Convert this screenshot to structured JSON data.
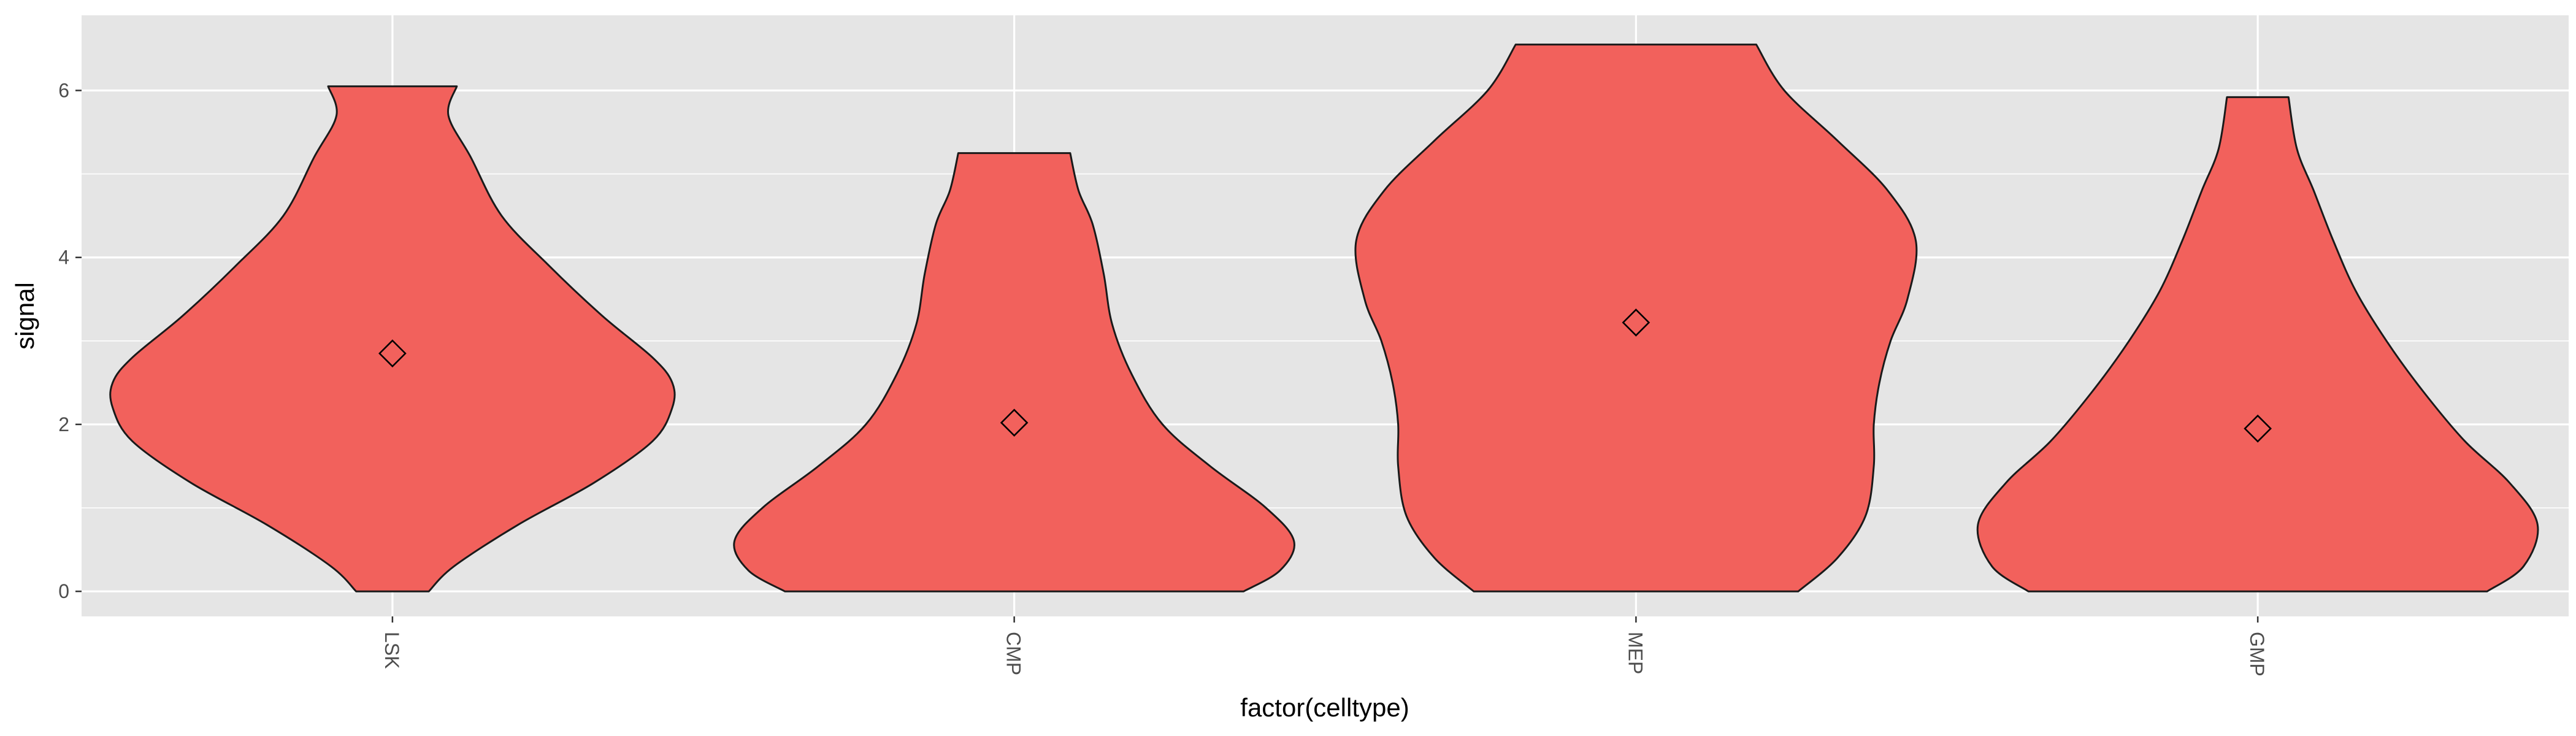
{
  "chart_data": {
    "type": "violin",
    "xlabel": "factor(celltype)",
    "ylabel": "signal",
    "ylim": [
      -0.3,
      6.9
    ],
    "y_ticks": [
      0,
      2,
      4,
      6
    ],
    "grid": true,
    "fill_color": "#F2615C",
    "panel_color": "#E5E5E5",
    "categories": [
      "LSK",
      "CMP",
      "MEP",
      "GMP"
    ],
    "violins": [
      {
        "category": "LSK",
        "min": 0.0,
        "max": 6.05,
        "mean": 2.85,
        "density_profile": [
          [
            0.0,
            0.13
          ],
          [
            0.3,
            0.22
          ],
          [
            0.8,
            0.45
          ],
          [
            1.3,
            0.72
          ],
          [
            1.8,
            0.93
          ],
          [
            2.2,
            1.0
          ],
          [
            2.5,
            1.0
          ],
          [
            2.8,
            0.93
          ],
          [
            3.3,
            0.75
          ],
          [
            3.9,
            0.56
          ],
          [
            4.5,
            0.39
          ],
          [
            5.2,
            0.28
          ],
          [
            5.7,
            0.2
          ],
          [
            6.05,
            0.23
          ]
        ]
      },
      {
        "category": "CMP",
        "min": 0.0,
        "max": 5.25,
        "mean": 2.02,
        "density_profile": [
          [
            0.0,
            0.82
          ],
          [
            0.25,
            0.95
          ],
          [
            0.6,
            1.0
          ],
          [
            1.0,
            0.9
          ],
          [
            1.5,
            0.7
          ],
          [
            2.0,
            0.53
          ],
          [
            2.6,
            0.42
          ],
          [
            3.2,
            0.35
          ],
          [
            3.8,
            0.32
          ],
          [
            4.4,
            0.28
          ],
          [
            4.8,
            0.23
          ],
          [
            5.25,
            0.2
          ]
        ]
      },
      {
        "category": "MEP",
        "min": 0.0,
        "max": 6.55,
        "mean": 3.22,
        "density_profile": [
          [
            0.0,
            0.58
          ],
          [
            0.4,
            0.72
          ],
          [
            0.9,
            0.82
          ],
          [
            1.5,
            0.85
          ],
          [
            2.0,
            0.85
          ],
          [
            2.5,
            0.87
          ],
          [
            3.0,
            0.91
          ],
          [
            3.5,
            0.97
          ],
          [
            4.2,
            1.0
          ],
          [
            4.8,
            0.9
          ],
          [
            5.4,
            0.72
          ],
          [
            6.0,
            0.53
          ],
          [
            6.55,
            0.43
          ]
        ]
      },
      {
        "category": "GMP",
        "min": 0.0,
        "max": 5.92,
        "mean": 1.95,
        "density_profile": [
          [
            0.0,
            0.82
          ],
          [
            0.3,
            0.95
          ],
          [
            0.8,
            1.0
          ],
          [
            1.3,
            0.9
          ],
          [
            1.8,
            0.74
          ],
          [
            2.4,
            0.59
          ],
          [
            3.0,
            0.46
          ],
          [
            3.6,
            0.35
          ],
          [
            4.2,
            0.27
          ],
          [
            4.8,
            0.2
          ],
          [
            5.3,
            0.14
          ],
          [
            5.92,
            0.11
          ]
        ]
      }
    ]
  }
}
